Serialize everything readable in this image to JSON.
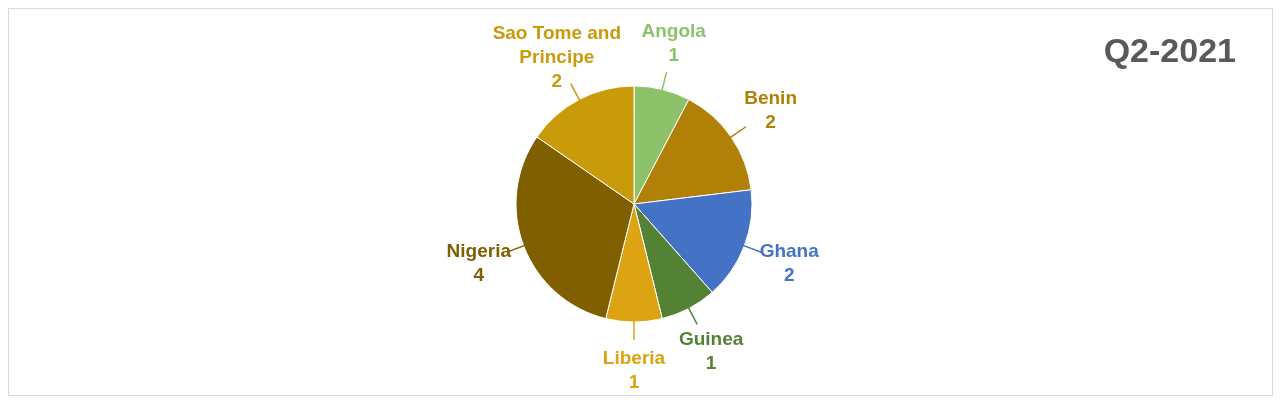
{
  "chart_data": {
    "type": "pie",
    "title": "Q2-2021",
    "categories": [
      "Angola",
      "Benin",
      "Ghana",
      "Guinea",
      "Liberia",
      "Nigeria",
      "Sao Tome and Principe"
    ],
    "values": [
      1,
      2,
      2,
      1,
      1,
      4,
      2
    ],
    "colors": [
      "#8dc26a",
      "#b08106",
      "#4472c4",
      "#548235",
      "#dca312",
      "#7f5f00",
      "#c99a0a"
    ],
    "data_labels": true,
    "legend": false
  }
}
